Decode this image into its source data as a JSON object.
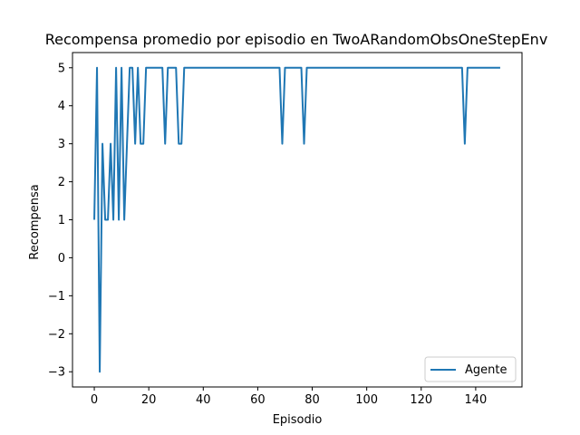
{
  "chart_data": {
    "type": "line",
    "title": "Recompensa promedio por episodio en TwoARandomObsOneStepEnv",
    "xlabel": "Episodio",
    "ylabel": "Recompensa",
    "xlim": [
      -8,
      157
    ],
    "ylim": [
      -3.4,
      5.4
    ],
    "xticks": [
      0,
      20,
      40,
      60,
      80,
      100,
      120,
      140
    ],
    "yticks": [
      -3,
      -2,
      -1,
      0,
      1,
      2,
      3,
      4,
      5
    ],
    "grid": false,
    "legend_position": "lower right",
    "series": [
      {
        "name": "Agente",
        "color": "#1f77b4",
        "x": [
          0,
          1,
          2,
          3,
          4,
          5,
          6,
          7,
          8,
          9,
          10,
          11,
          12,
          13,
          14,
          15,
          16,
          17,
          18,
          19,
          20,
          21,
          22,
          23,
          24,
          25,
          26,
          27,
          28,
          29,
          30,
          31,
          32,
          33,
          34,
          35,
          36,
          37,
          38,
          39,
          40,
          41,
          42,
          43,
          44,
          45,
          46,
          47,
          48,
          49,
          50,
          51,
          52,
          53,
          54,
          55,
          56,
          57,
          58,
          59,
          60,
          61,
          62,
          63,
          64,
          65,
          66,
          67,
          68,
          69,
          70,
          71,
          72,
          73,
          74,
          75,
          76,
          77,
          78,
          79,
          80,
          81,
          82,
          83,
          84,
          85,
          86,
          87,
          88,
          89,
          90,
          91,
          92,
          93,
          94,
          95,
          96,
          97,
          98,
          99,
          100,
          101,
          102,
          103,
          104,
          105,
          106,
          107,
          108,
          109,
          110,
          111,
          112,
          113,
          114,
          115,
          116,
          117,
          118,
          119,
          120,
          121,
          122,
          123,
          124,
          125,
          126,
          127,
          128,
          129,
          130,
          131,
          132,
          133,
          134,
          135,
          136,
          137,
          138,
          139,
          140,
          141,
          142,
          143,
          144,
          145,
          146,
          147,
          148,
          149
        ],
        "values": [
          1,
          5,
          -3,
          3,
          1,
          1,
          3,
          1,
          5,
          1,
          5,
          1,
          3,
          5,
          5,
          3,
          5,
          3,
          3,
          5,
          5,
          5,
          5,
          5,
          5,
          5,
          3,
          5,
          5,
          5,
          5,
          3,
          3,
          5,
          5,
          5,
          5,
          5,
          5,
          5,
          5,
          5,
          5,
          5,
          5,
          5,
          5,
          5,
          5,
          5,
          5,
          5,
          5,
          5,
          5,
          5,
          5,
          5,
          5,
          5,
          5,
          5,
          5,
          5,
          5,
          5,
          5,
          5,
          5,
          3,
          5,
          5,
          5,
          5,
          5,
          5,
          5,
          3,
          5,
          5,
          5,
          5,
          5,
          5,
          5,
          5,
          5,
          5,
          5,
          5,
          5,
          5,
          5,
          5,
          5,
          5,
          5,
          5,
          5,
          5,
          5,
          5,
          5,
          5,
          5,
          5,
          5,
          5,
          5,
          5,
          5,
          5,
          5,
          5,
          5,
          5,
          5,
          5,
          5,
          5,
          5,
          5,
          5,
          5,
          5,
          5,
          5,
          5,
          5,
          5,
          5,
          5,
          5,
          5,
          5,
          5,
          3,
          5,
          5,
          5,
          5,
          5,
          5,
          5,
          5,
          5,
          5,
          5,
          5,
          5
        ]
      }
    ]
  }
}
